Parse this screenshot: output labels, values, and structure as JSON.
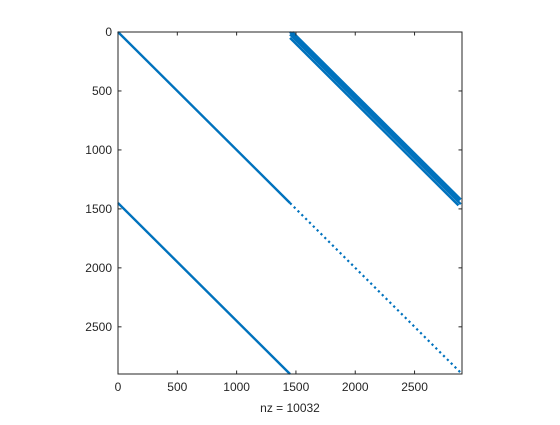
{
  "chart_data": {
    "type": "spy",
    "title": "",
    "xlabel": "nz = 10032",
    "ylabel": "",
    "xlim": [
      0,
      2900
    ],
    "ylim": [
      0,
      2900
    ],
    "y_reversed": true,
    "xticks": [
      0,
      500,
      1000,
      1500,
      2000,
      2500
    ],
    "yticks": [
      0,
      500,
      1000,
      1500,
      2000,
      2500
    ],
    "grid": false,
    "marker_color": "#0072BD",
    "segments": [
      {
        "name": "main-diagonal",
        "x": [
          0,
          1450
        ],
        "y": [
          0,
          1450
        ],
        "style": "solid"
      },
      {
        "name": "lower-diagonal",
        "x": [
          0,
          1450
        ],
        "y": [
          1450,
          2900
        ],
        "style": "solid"
      },
      {
        "name": "tail-diagonal",
        "x": [
          1450,
          2900
        ],
        "y": [
          1450,
          2900
        ],
        "style": "dotted"
      },
      {
        "name": "upper-band-1",
        "x": [
          1450,
          2880
        ],
        "y": [
          0,
          1430
        ],
        "style": "solid"
      },
      {
        "name": "upper-band-2",
        "x": [
          1470,
          2890
        ],
        "y": [
          0,
          1420
        ],
        "style": "solid"
      },
      {
        "name": "upper-band-3",
        "x": [
          1450,
          2890
        ],
        "y": [
          20,
          1460
        ],
        "style": "solid"
      },
      {
        "name": "upper-band-4",
        "x": [
          1450,
          2870
        ],
        "y": [
          50,
          1470
        ],
        "style": "solid"
      }
    ]
  }
}
